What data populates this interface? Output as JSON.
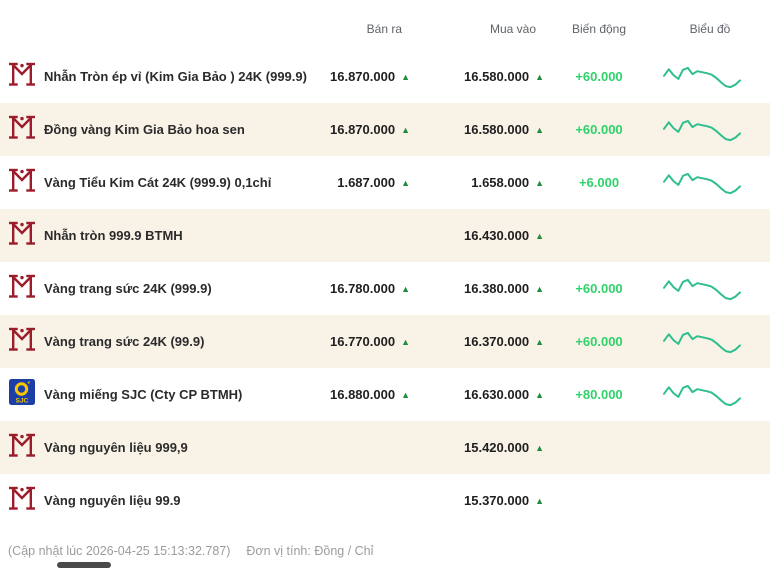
{
  "table": {
    "columns": {
      "sell": "Bán ra",
      "buy": "Mua vào",
      "change": "Biến động",
      "chart": "Biểu đồ"
    },
    "rows": [
      {
        "logo": "btmh",
        "name": "Nhẫn Tròn ép vỉ (Kim Gia Bảo ) 24K (999.9)",
        "sell": "16.870.000",
        "buy": "16.580.000",
        "change": "+60.000",
        "spark": true
      },
      {
        "logo": "btmh",
        "name": "Đồng vàng Kim Gia Bảo hoa sen",
        "sell": "16.870.000",
        "buy": "16.580.000",
        "change": "+60.000",
        "spark": true
      },
      {
        "logo": "btmh",
        "name": "Vàng Tiểu Kim Cát 24K (999.9) 0,1chỉ",
        "sell": "1.687.000",
        "buy": "1.658.000",
        "change": "+6.000",
        "spark": true
      },
      {
        "logo": "btmh",
        "name": "Nhẫn tròn 999.9 BTMH",
        "sell": "",
        "buy": "16.430.000",
        "change": "",
        "spark": false
      },
      {
        "logo": "btmh",
        "name": "Vàng trang sức 24K (999.9)",
        "sell": "16.780.000",
        "buy": "16.380.000",
        "change": "+60.000",
        "spark": true
      },
      {
        "logo": "btmh",
        "name": "Vàng trang sức 24K (99.9)",
        "sell": "16.770.000",
        "buy": "16.370.000",
        "change": "+60.000",
        "spark": true
      },
      {
        "logo": "sjc",
        "name": "Vàng miếng SJC (Cty CP BTMH)",
        "sell": "16.880.000",
        "buy": "16.630.000",
        "change": "+80.000",
        "spark": true
      },
      {
        "logo": "btmh",
        "name": "Vàng nguyên liệu 999,9",
        "sell": "",
        "buy": "15.420.000",
        "change": "",
        "spark": false
      },
      {
        "logo": "btmh",
        "name": "Vàng nguyên liệu 99.9",
        "sell": "",
        "buy": "15.370.000",
        "change": "",
        "spark": false
      }
    ]
  },
  "chart_data": {
    "type": "line",
    "note": "sparkline trend shown for priced rows",
    "series": [
      {
        "name": "price-trend-normalized",
        "values": [
          0.55,
          0.82,
          0.58,
          0.42,
          0.8,
          0.88,
          0.62,
          0.74,
          0.7,
          0.66,
          0.6,
          0.46,
          0.28,
          0.12,
          0.08,
          0.18,
          0.36
        ]
      }
    ]
  },
  "icons": {
    "up": "▲"
  },
  "footer": {
    "updated": "(Cập nhật lúc 2026-04-25 15:13:32.787)",
    "unit": "Đơn vị tính: Đồng / Chỉ"
  },
  "colors": {
    "row_alt_bg": "#f8f2e7",
    "value_text": "#1f1f1f",
    "header_text": "#5f6368",
    "change_green": "#2fd26b",
    "arrow_green": "#1e8e3e",
    "spark_green": "#2fbf8f",
    "btmh_maroon": "#9b1c2a",
    "sjc_blue": "#1c3ea6",
    "sjc_yellow": "#f7c600",
    "footer_gray": "#9c9c9c"
  }
}
